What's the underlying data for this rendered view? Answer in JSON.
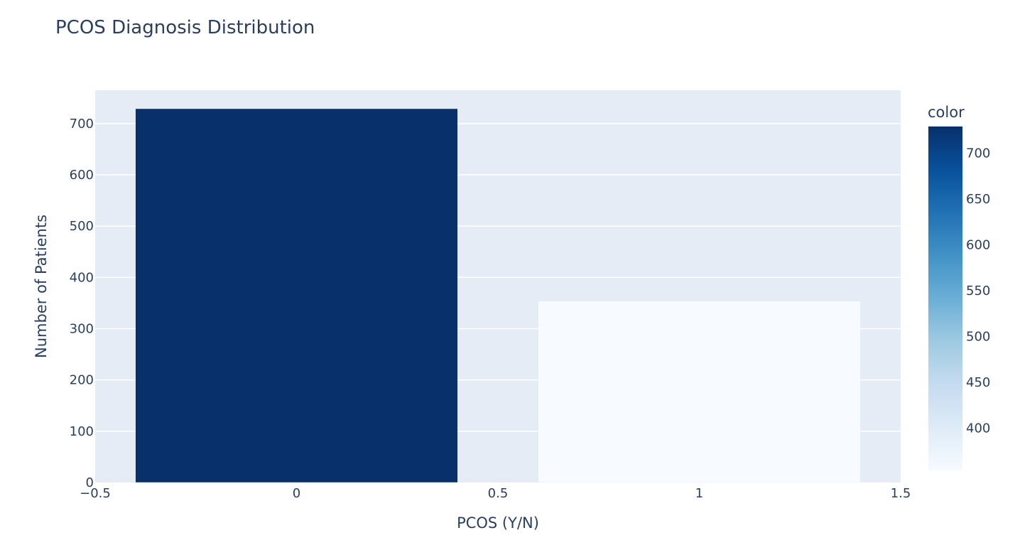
{
  "chart_data": {
    "type": "bar",
    "title": "PCOS Diagnosis Distribution",
    "xlabel": "PCOS (Y/N)",
    "ylabel": "Number of Patients",
    "x": [
      0,
      1
    ],
    "values": [
      729,
      354
    ],
    "xlim": [
      -0.5,
      1.5
    ],
    "ylim": [
      0,
      765
    ],
    "x_ticks": [
      {
        "value": -0.5,
        "label": "−0.5"
      },
      {
        "value": 0,
        "label": "0"
      },
      {
        "value": 0.5,
        "label": "0.5"
      },
      {
        "value": 1,
        "label": "1"
      },
      {
        "value": 1.5,
        "label": "1.5"
      }
    ],
    "y_ticks": [
      {
        "value": 0,
        "label": "0"
      },
      {
        "value": 100,
        "label": "100"
      },
      {
        "value": 200,
        "label": "200"
      },
      {
        "value": 300,
        "label": "300"
      },
      {
        "value": 400,
        "label": "400"
      },
      {
        "value": 500,
        "label": "500"
      },
      {
        "value": 600,
        "label": "600"
      },
      {
        "value": 700,
        "label": "700"
      }
    ],
    "grid": true,
    "colorbar": {
      "title": "color",
      "range": [
        354,
        729
      ],
      "ticks": [
        {
          "value": 400,
          "label": "400"
        },
        {
          "value": 450,
          "label": "450"
        },
        {
          "value": 500,
          "label": "500"
        },
        {
          "value": 550,
          "label": "550"
        },
        {
          "value": 600,
          "label": "600"
        },
        {
          "value": 650,
          "label": "650"
        },
        {
          "value": 700,
          "label": "700"
        }
      ],
      "colorscale": [
        "#f7fbff",
        "#deebf7",
        "#c6dbef",
        "#9ecae1",
        "#6baed6",
        "#4292c6",
        "#2171b5",
        "#08519c",
        "#08306b"
      ]
    },
    "colors": {
      "plot_bg": "#e5ecf6",
      "grid": "#ffffff",
      "text": "#2a3f5f"
    }
  }
}
